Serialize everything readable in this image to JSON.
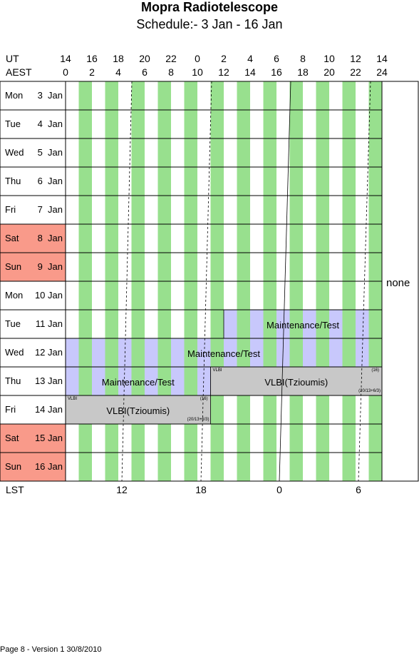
{
  "title": "Mopra Radiotelescope",
  "subtitle": "Schedule:- 3  Jan - 16 Jan",
  "ut_label": "UT",
  "aest_label": "AEST",
  "lst_label": "LST",
  "ut_ticks": [
    "14",
    "16",
    "18",
    "20",
    "22",
    "0",
    "2",
    "4",
    "6",
    "8",
    "10",
    "12",
    "14"
  ],
  "aest_ticks": [
    "0",
    "2",
    "4",
    "6",
    "8",
    "10",
    "12",
    "14",
    "16",
    "18",
    "20",
    "22",
    "24"
  ],
  "lst_ticks": [
    "12",
    "18",
    "0",
    "6"
  ],
  "days": [
    {
      "dow": "Mon",
      "date": "3  Jan",
      "weekend": false
    },
    {
      "dow": "Tue",
      "date": "4  Jan",
      "weekend": false
    },
    {
      "dow": "Wed",
      "date": "5  Jan",
      "weekend": false
    },
    {
      "dow": "Thu",
      "date": "6  Jan",
      "weekend": false
    },
    {
      "dow": "Fri",
      "date": "7  Jan",
      "weekend": false
    },
    {
      "dow": "Sat",
      "date": "8  Jan",
      "weekend": true
    },
    {
      "dow": "Sun",
      "date": "9  Jan",
      "weekend": true
    },
    {
      "dow": "Mon",
      "date": "10 Jan",
      "weekend": false
    },
    {
      "dow": "Tue",
      "date": "11 Jan",
      "weekend": false
    },
    {
      "dow": "Wed",
      "date": "12 Jan",
      "weekend": false
    },
    {
      "dow": "Thu",
      "date": "13 Jan",
      "weekend": false
    },
    {
      "dow": "Fri",
      "date": "14 Jan",
      "weekend": false
    },
    {
      "dow": "Sat",
      "date": "15 Jan",
      "weekend": true
    },
    {
      "dow": "Sun",
      "date": "16 Jan",
      "weekend": true
    }
  ],
  "blocks": [
    {
      "day": 8,
      "start_aest": 12,
      "end_aest": 24,
      "type": "maint",
      "label": "Maintenance/Test",
      "tag_left": "",
      "tag_right": "",
      "tag_bottom": ""
    },
    {
      "day": 9,
      "start_aest": 0,
      "end_aest": 24,
      "type": "maint",
      "label": "Maintenance/Test",
      "tag_left": "",
      "tag_right": "",
      "tag_bottom": ""
    },
    {
      "day": 10,
      "start_aest": 0,
      "end_aest": 11,
      "type": "maint",
      "label": "Maintenance/Test",
      "tag_left": "",
      "tag_right": "",
      "tag_bottom": ""
    },
    {
      "day": 10,
      "start_aest": 11,
      "end_aest": 24,
      "type": "vlbi",
      "label": "VLBI(Tzioumis)",
      "tag_left": "VLBI",
      "tag_right": "(16)",
      "tag_bottom": "(20/13+6/3)"
    },
    {
      "day": 11,
      "start_aest": 0,
      "end_aest": 11,
      "type": "vlbi",
      "label": "VLBI(Tzioumis)",
      "tag_left": "VLBI",
      "tag_right": "(16)",
      "tag_bottom": "(20/13+6/3)"
    }
  ],
  "side_note": "none",
  "footer": "Page 8 - Version 1  30/8/2010",
  "colors": {
    "green_stripe": "#98e08e",
    "maint_block": "#c8c8fc",
    "vlbi_block": "#c8c8c8",
    "weekend": "#f99a8a",
    "grid_line": "#000000"
  }
}
